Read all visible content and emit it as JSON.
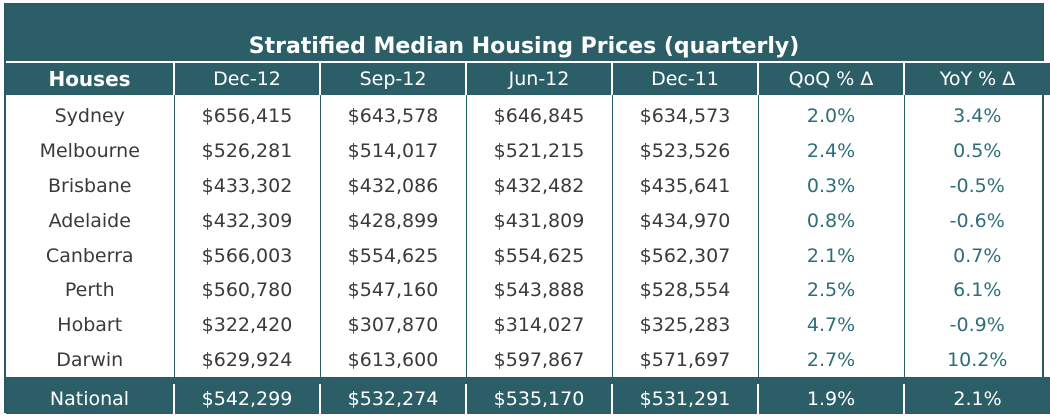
{
  "table": {
    "title": "Stratified Median Housing Prices (quarterly)",
    "headers": [
      "Houses",
      "Dec-12",
      "Sep-12",
      "Jun-12",
      "Dec-11",
      "QoQ % Δ",
      "YoY % Δ"
    ],
    "rows": [
      {
        "city": "Sydney",
        "dec12": "$656,415",
        "sep12": "$643,578",
        "jun12": "$646,845",
        "dec11": "$634,573",
        "qoq": "2.0%",
        "yoy": "3.4%"
      },
      {
        "city": "Melbourne",
        "dec12": "$526,281",
        "sep12": "$514,017",
        "jun12": "$521,215",
        "dec11": "$523,526",
        "qoq": "2.4%",
        "yoy": "0.5%"
      },
      {
        "city": "Brisbane",
        "dec12": "$433,302",
        "sep12": "$432,086",
        "jun12": "$432,482",
        "dec11": "$435,641",
        "qoq": "0.3%",
        "yoy": "-0.5%"
      },
      {
        "city": "Adelaide",
        "dec12": "$432,309",
        "sep12": "$428,899",
        "jun12": "$431,809",
        "dec11": "$434,970",
        "qoq": "0.8%",
        "yoy": "-0.6%"
      },
      {
        "city": "Canberra",
        "dec12": "$566,003",
        "sep12": "$554,625",
        "jun12": "$554,625",
        "dec11": "$562,307",
        "qoq": "2.1%",
        "yoy": "0.7%"
      },
      {
        "city": "Perth",
        "dec12": "$560,780",
        "sep12": "$547,160",
        "jun12": "$543,888",
        "dec11": "$528,554",
        "qoq": "2.5%",
        "yoy": "6.1%"
      },
      {
        "city": "Hobart",
        "dec12": "$322,420",
        "sep12": "$307,870",
        "jun12": "$314,027",
        "dec11": "$325,283",
        "qoq": "4.7%",
        "yoy": "-0.9%"
      },
      {
        "city": "Darwin",
        "dec12": "$629,924",
        "sep12": "$613,600",
        "jun12": "$597,867",
        "dec11": "$571,697",
        "qoq": "2.7%",
        "yoy": "10.2%"
      }
    ],
    "total": {
      "city": "National",
      "dec12": "$542,299",
      "sep12": "$532,274",
      "jun12": "$535,170",
      "dec11": "$531,291",
      "qoq": "1.9%",
      "yoy": "2.1%"
    }
  },
  "colors": {
    "header_bg": "#2c5e68",
    "pct_text": "#2e6e79"
  }
}
